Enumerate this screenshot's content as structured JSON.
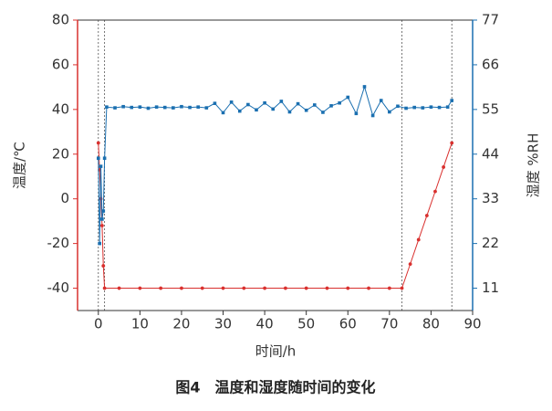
{
  "chart_data": {
    "type": "line",
    "title": "图4　温度和湿度随时间的变化",
    "x_label": "时间/h",
    "y_label": "温度/℃",
    "y2_label": "湿度 %RH",
    "xlim": [
      -5,
      90
    ],
    "xticks": [
      0,
      10,
      20,
      30,
      40,
      50,
      60,
      70,
      80,
      90
    ],
    "ylim": [
      -50,
      80
    ],
    "yticks": [
      -40,
      -20,
      0,
      20,
      40,
      60,
      80
    ],
    "y2lim": [
      5.5,
      77
    ],
    "y2ticks": [
      11,
      22,
      33,
      44,
      55,
      66,
      77
    ],
    "y_axis_color": "#d9302e",
    "y2_axis_color": "#1a6fb0",
    "reference_lines": [
      0,
      1.5,
      73,
      85
    ],
    "series": [
      {
        "color": "#d9302e",
        "marker": "circle",
        "x": [
          0,
          0.3,
          0.6,
          0.9,
          1.2,
          1.5,
          5,
          10,
          15,
          20,
          25,
          30,
          35,
          40,
          45,
          50,
          55,
          60,
          65,
          70,
          73,
          75,
          77,
          79,
          81,
          83,
          85
        ],
        "values": [
          25,
          13,
          0,
          -12,
          -30,
          -40,
          -40,
          -40,
          -40,
          -40,
          -40,
          -40,
          -40,
          -40,
          -40,
          -40,
          -40,
          -40,
          -40,
          -40,
          -40,
          -29.2,
          -18.3,
          -7.5,
          3.3,
          14.2,
          25
        ]
      },
      {
        "color": "#1a6fb0",
        "marker": "square",
        "axis": "y2",
        "x": [
          0,
          0.3,
          0.6,
          0.9,
          1.2,
          1.5,
          2,
          4,
          6,
          8,
          10,
          12,
          14,
          16,
          18,
          20,
          22,
          24,
          26,
          28,
          30,
          32,
          34,
          36,
          38,
          40,
          42,
          44,
          46,
          48,
          50,
          52,
          54,
          56,
          58,
          60,
          62,
          64,
          66,
          68,
          70,
          72,
          74,
          76,
          78,
          80,
          82,
          84,
          85
        ],
        "values": [
          43,
          22,
          41,
          28,
          30,
          43,
          55.6,
          55.4,
          55.7,
          55.5,
          55.6,
          55.3,
          55.6,
          55.5,
          55.4,
          55.7,
          55.5,
          55.6,
          55.4,
          56.5,
          54.2,
          56.8,
          54.6,
          56.2,
          54.9,
          56.6,
          55.1,
          57.0,
          54.4,
          56.4,
          54.8,
          56.1,
          54.3,
          55.9,
          56.6,
          58.0,
          54.0,
          60.6,
          53.5,
          57.2,
          54.4,
          55.8,
          55.3,
          55.5,
          55.4,
          55.6,
          55.5,
          55.6,
          57.2
        ]
      }
    ]
  }
}
